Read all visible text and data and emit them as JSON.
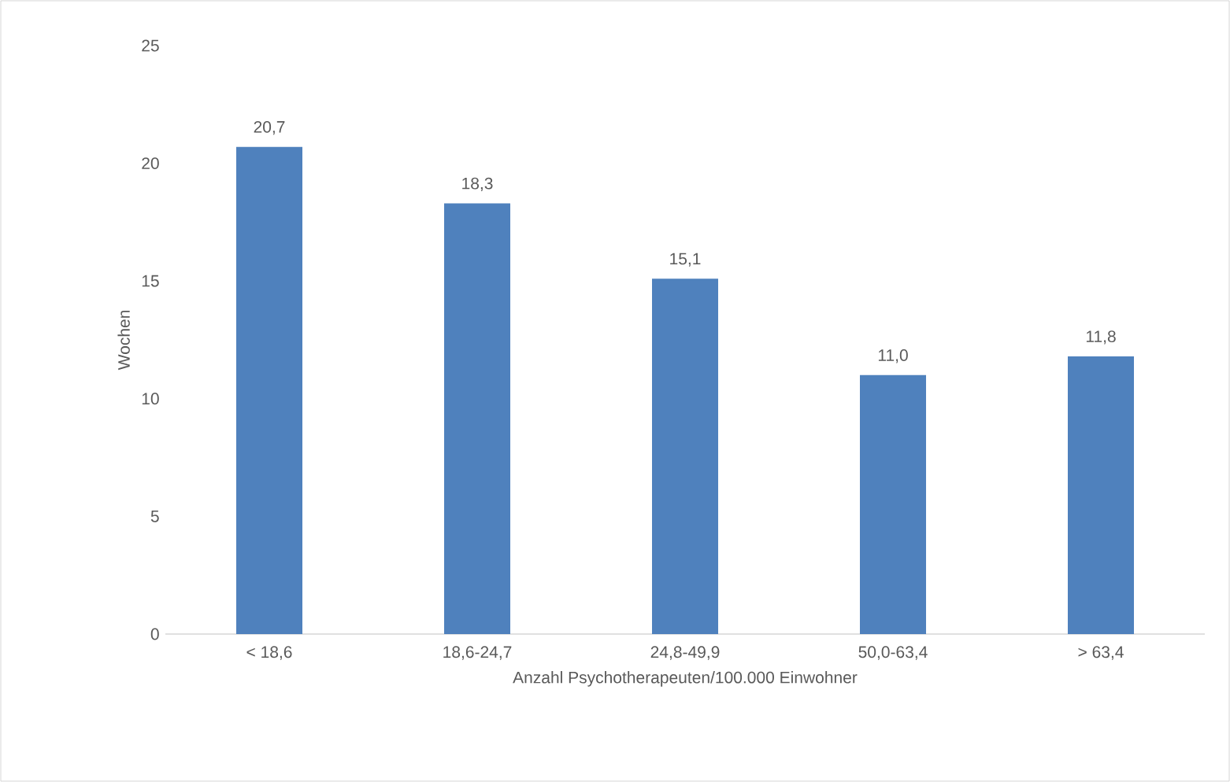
{
  "chart_data": {
    "type": "bar",
    "xlabel": "Anzahl Psychotherapeuten/100.000 Einwohner",
    "ylabel": "Wochen",
    "categories": [
      "< 18,6",
      "18,6-24,7",
      "24,8-49,9",
      "50,0-63,4",
      "> 63,4"
    ],
    "values": [
      20.7,
      18.3,
      15.1,
      11.0,
      11.8
    ],
    "value_labels": [
      "20,7",
      "18,3",
      "15,1",
      "11,0",
      "11,8"
    ],
    "color": "#4f81bd",
    "ylim": [
      0,
      25
    ],
    "yticks": [
      0,
      5,
      10,
      15,
      20,
      25
    ]
  }
}
